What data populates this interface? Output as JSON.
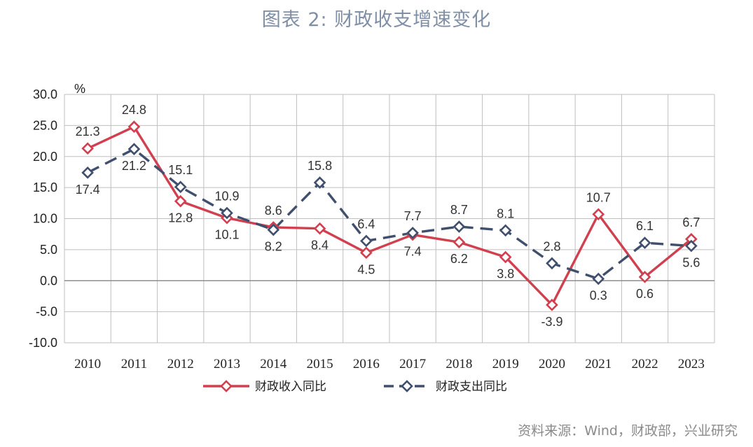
{
  "title": "图表 2:  财政收支增速变化",
  "source": "资料来源：Wind，财政部，兴业研究",
  "chart_data": {
    "type": "line",
    "title": "图表 2:  财政收支增速变化",
    "ylabel": "%",
    "ylim": [
      -10,
      30
    ],
    "yticks": [
      "30.0",
      "25.0",
      "20.0",
      "15.0",
      "10.0",
      "5.0",
      "0.0",
      "-5.0",
      "-10.0"
    ],
    "grid": true,
    "legend_position": "bottom",
    "categories": [
      "2010",
      "2011",
      "2012",
      "2013",
      "2014",
      "2015",
      "2016",
      "2017",
      "2018",
      "2019",
      "2020",
      "2021",
      "2022",
      "2023"
    ],
    "series": [
      {
        "name": "财政收入同比",
        "color": "#d0404f",
        "style": "solid",
        "marker": "diamond",
        "values": [
          21.3,
          24.8,
          12.8,
          10.1,
          8.6,
          8.4,
          4.5,
          7.4,
          6.2,
          3.8,
          -3.9,
          10.7,
          0.6,
          6.7
        ],
        "labels": [
          "21.3",
          "24.8",
          "12.8",
          "10.1",
          "8.6",
          "8.4",
          "4.5",
          "7.4",
          "6.2",
          "3.8",
          "-3.9",
          "10.7",
          "0.6",
          "6.7"
        ]
      },
      {
        "name": "财政支出同比",
        "color": "#3f4f6d",
        "style": "dashed",
        "marker": "diamond",
        "values": [
          17.4,
          21.2,
          15.1,
          10.9,
          8.2,
          15.8,
          6.4,
          7.7,
          8.7,
          8.1,
          2.8,
          0.3,
          6.1,
          5.6
        ],
        "labels": [
          "17.4",
          "21.2",
          "15.1",
          "10.9",
          "8.2",
          "15.8",
          "6.4",
          "7.7",
          "8.7",
          "8.1",
          "2.8",
          "0.3",
          "6.1",
          "5.6"
        ]
      }
    ]
  }
}
